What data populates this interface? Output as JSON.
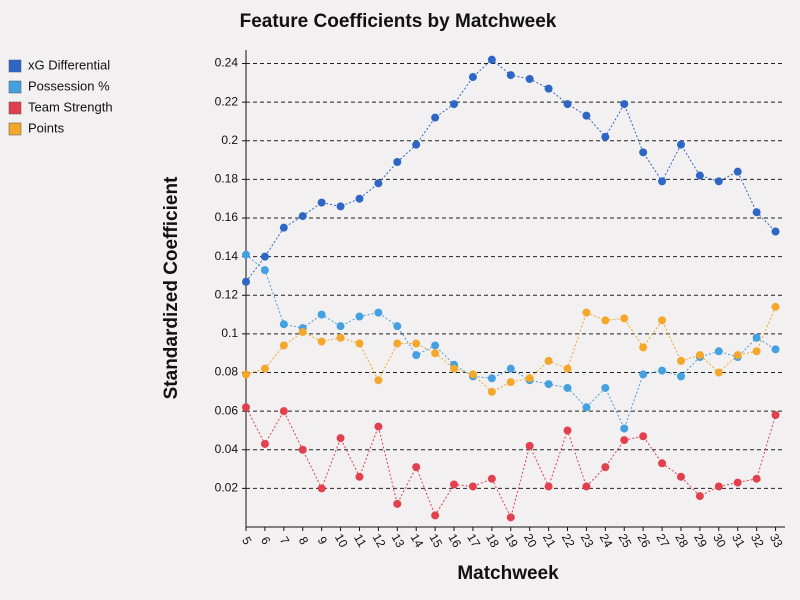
{
  "chart_data": {
    "type": "line",
    "title": "Feature Coefficients by Matchweek",
    "xlabel": "Matchweek",
    "ylabel": "Standardized Coefficient",
    "x": [
      5,
      6,
      7,
      8,
      9,
      10,
      11,
      12,
      13,
      14,
      15,
      16,
      17,
      18,
      19,
      20,
      21,
      22,
      23,
      24,
      25,
      26,
      27,
      28,
      29,
      30,
      31,
      32,
      33
    ],
    "xlim": [
      5,
      33.5
    ],
    "xticks": [
      5,
      6,
      7,
      8,
      9,
      10,
      11,
      12,
      13,
      14,
      15,
      16,
      17,
      18,
      19,
      20,
      21,
      22,
      23,
      24,
      25,
      26,
      27,
      28,
      29,
      30,
      31,
      32,
      33
    ],
    "ylim": [
      0,
      0.247
    ],
    "yticks": [
      0.02,
      0.04,
      0.06,
      0.08,
      0.1,
      0.12,
      0.14,
      0.16,
      0.18,
      0.2,
      0.22,
      0.24
    ],
    "grid": true,
    "legend": "top-left",
    "series": [
      {
        "name": "xG Differential",
        "color": "#2e66c6",
        "values": [
          0.127,
          0.14,
          0.155,
          0.161,
          0.168,
          0.166,
          0.17,
          0.178,
          0.189,
          0.198,
          0.212,
          0.219,
          0.233,
          0.242,
          0.234,
          0.232,
          0.227,
          0.219,
          0.213,
          0.202,
          0.219,
          0.194,
          0.179,
          0.198,
          0.182,
          0.179,
          0.184,
          0.163,
          0.153
        ]
      },
      {
        "name": "Possession %",
        "color": "#45a0e0",
        "values": [
          0.141,
          0.133,
          0.105,
          0.103,
          0.11,
          0.104,
          0.109,
          0.111,
          0.104,
          0.089,
          0.094,
          0.084,
          0.078,
          0.077,
          0.082,
          0.076,
          0.074,
          0.072,
          0.062,
          0.072,
          0.051,
          0.079,
          0.081,
          0.078,
          0.088,
          0.091,
          0.088,
          0.098,
          0.092
        ]
      },
      {
        "name": "Team Strength",
        "color": "#e2404f",
        "values": [
          0.062,
          0.043,
          0.06,
          0.04,
          0.02,
          0.046,
          0.026,
          0.052,
          0.012,
          0.031,
          0.006,
          0.022,
          0.021,
          0.025,
          0.005,
          0.042,
          0.021,
          0.05,
          0.021,
          0.031,
          0.045,
          0.047,
          0.033,
          0.026,
          0.016,
          0.021,
          0.023,
          0.025,
          0.058
        ]
      },
      {
        "name": "Points",
        "color": "#f4a72a",
        "values": [
          0.079,
          0.082,
          0.094,
          0.101,
          0.096,
          0.098,
          0.095,
          0.076,
          0.095,
          0.095,
          0.09,
          0.082,
          0.079,
          0.07,
          0.075,
          0.077,
          0.086,
          0.082,
          0.111,
          0.107,
          0.108,
          0.093,
          0.107,
          0.086,
          0.089,
          0.08,
          0.089,
          0.091,
          0.114
        ]
      }
    ]
  }
}
